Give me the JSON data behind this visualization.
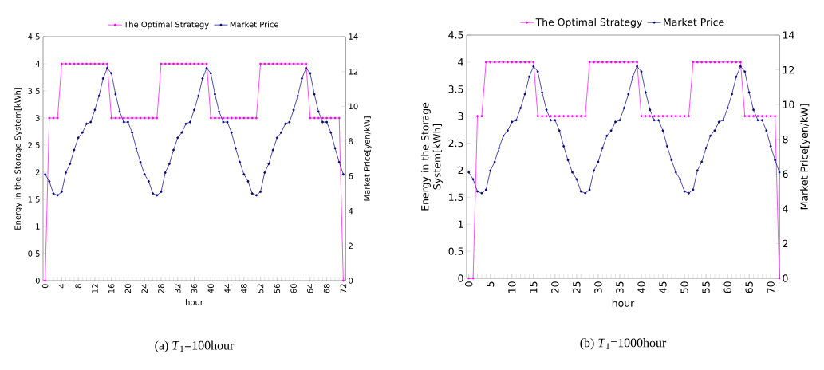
{
  "chart_data": [
    {
      "type": "line",
      "x": [
        0,
        1,
        2,
        3,
        4,
        5,
        6,
        7,
        8,
        9,
        10,
        11,
        12,
        13,
        14,
        15,
        16,
        17,
        18,
        19,
        20,
        21,
        22,
        23,
        24,
        25,
        26,
        27,
        28,
        29,
        30,
        31,
        32,
        33,
        34,
        35,
        36,
        37,
        38,
        39,
        40,
        41,
        42,
        43,
        44,
        45,
        46,
        47,
        48,
        49,
        50,
        51,
        52,
        53,
        54,
        55,
        56,
        57,
        58,
        59,
        60,
        61,
        62,
        63,
        64,
        65,
        66,
        67,
        68,
        69,
        70,
        71,
        72
      ],
      "series": [
        {
          "name": "The Optimal Strategy",
          "color": "#ff00ff",
          "values": [
            0,
            3,
            3,
            3,
            4,
            4,
            4,
            4,
            4,
            4,
            4,
            4,
            4,
            4,
            4,
            4,
            3,
            3,
            3,
            3,
            3,
            3,
            3,
            3,
            3,
            3,
            3,
            3,
            4,
            4,
            4,
            4,
            4,
            4,
            4,
            4,
            4,
            4,
            4,
            4,
            3,
            3,
            3,
            3,
            3,
            3,
            3,
            3,
            3,
            3,
            3,
            3,
            4,
            4,
            4,
            4,
            4,
            4,
            4,
            4,
            4,
            4,
            4,
            4,
            3,
            3,
            3,
            3,
            3,
            3,
            3,
            3,
            0
          ]
        },
        {
          "name": "Market Price",
          "color": "#000080",
          "axis": "y2",
          "values": [
            6.1,
            5.7,
            5.0,
            4.9,
            5.1,
            6.2,
            6.7,
            7.5,
            8.2,
            8.5,
            9.0,
            9.1,
            9.8,
            10.6,
            11.6,
            12.2,
            11.9,
            10.7,
            9.7,
            9.1,
            9.1,
            8.5,
            7.6,
            6.8,
            6.1,
            5.7,
            5.0,
            4.9,
            5.1,
            6.2,
            6.7,
            7.5,
            8.2,
            8.5,
            9.0,
            9.1,
            9.8,
            10.6,
            11.6,
            12.2,
            11.9,
            10.7,
            9.7,
            9.1,
            9.1,
            8.5,
            7.6,
            6.8,
            6.1,
            5.7,
            5.0,
            4.9,
            5.1,
            6.2,
            6.7,
            7.5,
            8.2,
            8.5,
            9.0,
            9.1,
            9.8,
            10.6,
            11.6,
            12.2,
            11.9,
            10.7,
            9.7,
            9.1,
            9.1,
            8.5,
            7.6,
            6.8,
            6.1
          ]
        }
      ],
      "xlabel": "hour",
      "ylabel": "Energy in the Storage System[kWh]",
      "y2label": "Market Price[yen/kW]",
      "xlim": [
        -0.5,
        72.5
      ],
      "xticks": [
        0,
        4,
        8,
        12,
        16,
        20,
        24,
        28,
        32,
        36,
        40,
        44,
        48,
        52,
        56,
        60,
        64,
        68,
        72
      ],
      "ylim": [
        0,
        4.5
      ],
      "yticks": [
        0,
        0.5,
        1,
        1.5,
        2,
        2.5,
        3,
        3.5,
        4,
        4.5
      ],
      "y2lim": [
        0,
        14
      ],
      "y2ticks": [
        0,
        2,
        4,
        6,
        8,
        10,
        12,
        14
      ],
      "legend": "top",
      "marker": "circle",
      "line_style": "solid",
      "annotations": [
        "(a) *T*$_{1}$=100hour"
      ]
    },
    {
      "type": "line",
      "x": [
        0,
        1,
        2,
        3,
        4,
        5,
        6,
        7,
        8,
        9,
        10,
        11,
        12,
        13,
        14,
        15,
        16,
        17,
        18,
        19,
        20,
        21,
        22,
        23,
        24,
        25,
        26,
        27,
        28,
        29,
        30,
        31,
        32,
        33,
        34,
        35,
        36,
        37,
        38,
        39,
        40,
        41,
        42,
        43,
        44,
        45,
        46,
        47,
        48,
        49,
        50,
        51,
        52,
        53,
        54,
        55,
        56,
        57,
        58,
        59,
        60,
        61,
        62,
        63,
        64,
        65,
        66,
        67,
        68,
        69,
        70,
        71,
        72
      ],
      "series": [
        {
          "name": "The Optimal Strategy",
          "color": "#ff00ff",
          "values": [
            0,
            0,
            3,
            3,
            4,
            4,
            4,
            4,
            4,
            4,
            4,
            4,
            4,
            4,
            4,
            4,
            3,
            3,
            3,
            3,
            3,
            3,
            3,
            3,
            3,
            3,
            3,
            3,
            4,
            4,
            4,
            4,
            4,
            4,
            4,
            4,
            4,
            4,
            4,
            4,
            3,
            3,
            3,
            3,
            3,
            3,
            3,
            3,
            3,
            3,
            3,
            3,
            4,
            4,
            4,
            4,
            4,
            4,
            4,
            4,
            4,
            4,
            4,
            4,
            3,
            3,
            3,
            3,
            3,
            3,
            3,
            3,
            0
          ]
        },
        {
          "name": "Market Price",
          "color": "#000080",
          "axis": "y2",
          "values": [
            6.1,
            5.7,
            5.0,
            4.9,
            5.1,
            6.2,
            6.7,
            7.5,
            8.2,
            8.5,
            9.0,
            9.1,
            9.8,
            10.6,
            11.6,
            12.2,
            11.9,
            10.7,
            9.7,
            9.1,
            9.1,
            8.5,
            7.6,
            6.8,
            6.1,
            5.7,
            5.0,
            4.9,
            5.1,
            6.2,
            6.7,
            7.5,
            8.2,
            8.5,
            9.0,
            9.1,
            9.8,
            10.6,
            11.6,
            12.2,
            11.9,
            10.7,
            9.7,
            9.1,
            9.1,
            8.5,
            7.6,
            6.8,
            6.1,
            5.7,
            5.0,
            4.9,
            5.1,
            6.2,
            6.7,
            7.5,
            8.2,
            8.5,
            9.0,
            9.1,
            9.8,
            10.6,
            11.6,
            12.2,
            11.9,
            10.7,
            9.7,
            9.1,
            9.1,
            8.5,
            7.6,
            6.8,
            6.1
          ]
        }
      ],
      "xlabel": "hour",
      "ylabel": "Energy in the Storage System[kWh]",
      "y2label": "Market Price[yen/kW]",
      "xlim": [
        -0.5,
        72
      ],
      "xticks": [
        0,
        5,
        10,
        15,
        20,
        25,
        30,
        35,
        40,
        45,
        50,
        55,
        60,
        65,
        70
      ],
      "ylim": [
        0,
        4.5
      ],
      "yticks": [
        0,
        0.5,
        1,
        1.5,
        2,
        2.5,
        3,
        3.5,
        4,
        4.5
      ],
      "y2lim": [
        0,
        14
      ],
      "y2ticks": [
        0,
        2,
        4,
        6,
        8,
        10,
        12,
        14
      ],
      "legend": "top",
      "marker": "circle",
      "line_style": "solid",
      "annotations": [
        "(b) *T*$_{1}$=1000hour"
      ]
    }
  ]
}
